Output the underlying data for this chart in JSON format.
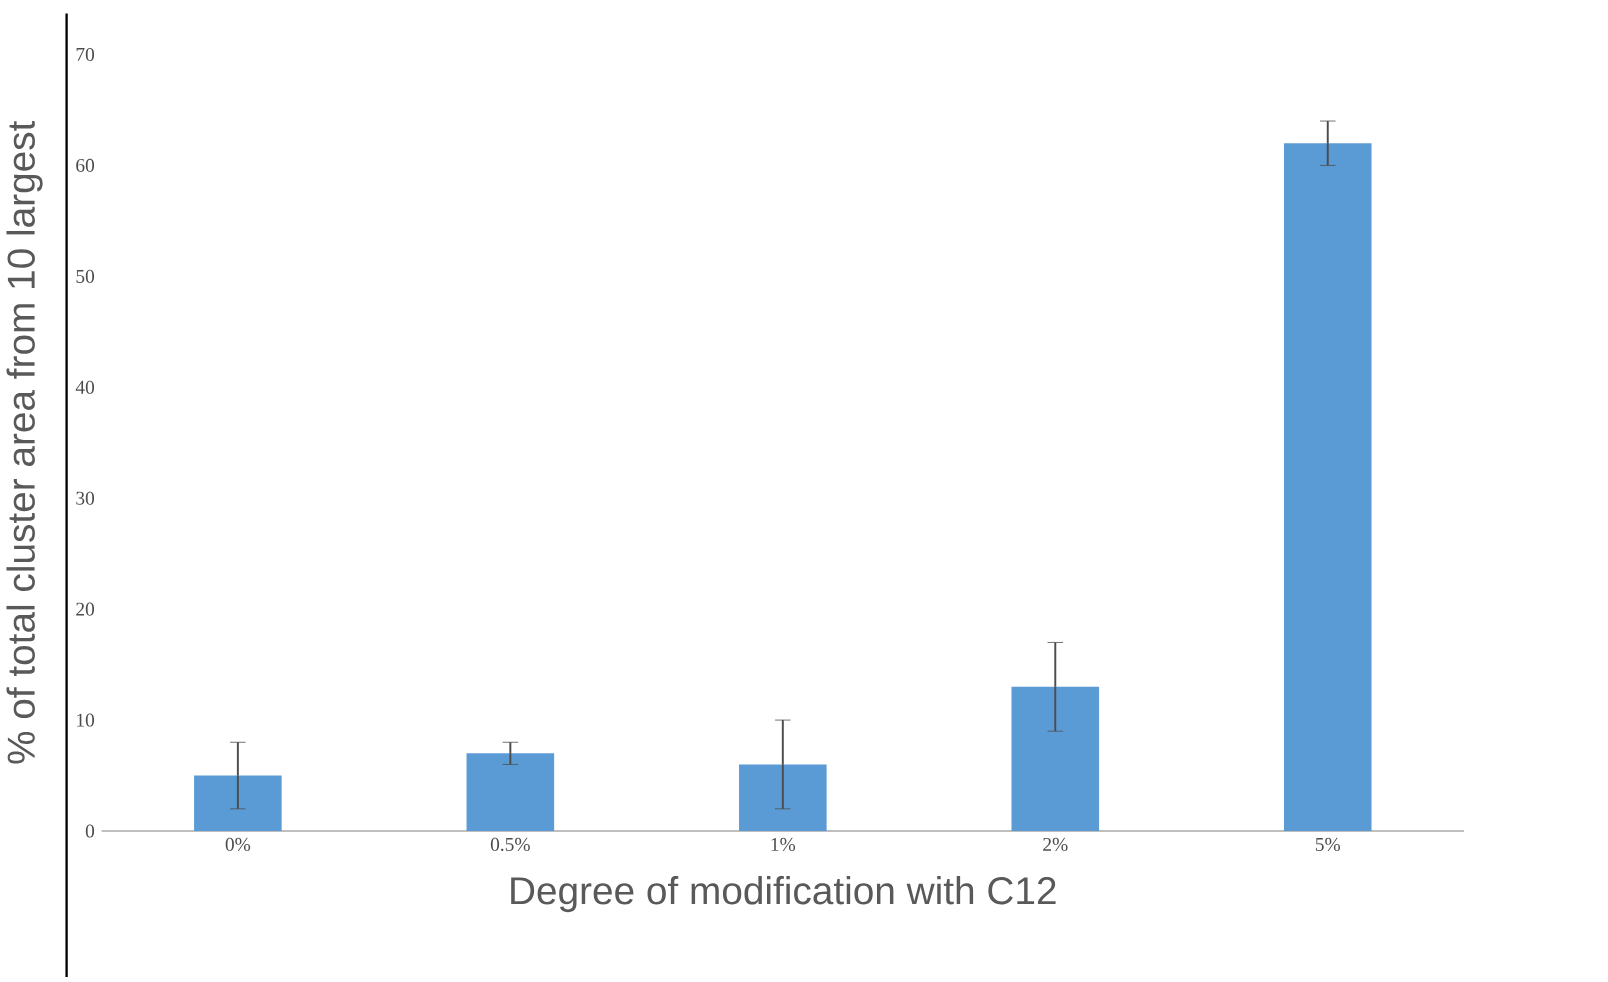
{
  "chart_data": {
    "type": "bar",
    "xlabel": "Degree of modification with C12",
    "ylabel": "% of total cluster area from 10 largest",
    "categories": [
      "0%",
      "0.5%",
      "1%",
      "2%",
      "5%"
    ],
    "values": [
      5,
      7,
      6,
      13,
      62
    ],
    "errors": [
      3,
      1,
      4,
      4,
      2
    ],
    "color": "#5b9bd5",
    "ylim": [
      0,
      70
    ],
    "yticks": [
      0,
      10,
      20,
      30,
      40,
      50,
      60,
      70
    ]
  }
}
